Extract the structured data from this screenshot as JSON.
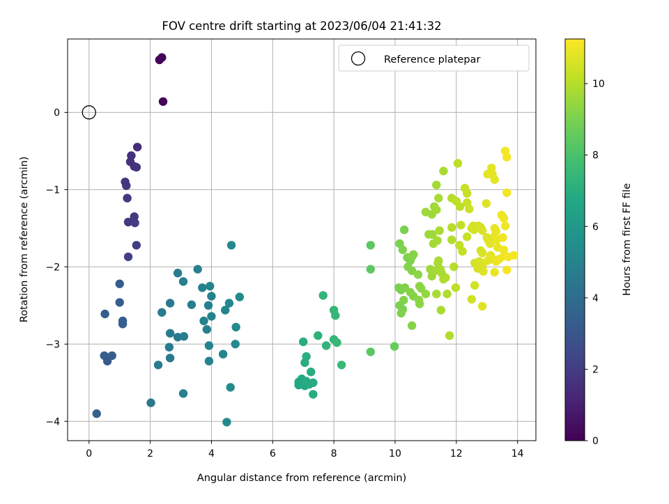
{
  "chart_data": {
    "type": "scatter",
    "title": "FOV centre drift starting at 2023/06/04 21:41:32",
    "xlabel": "Angular distance from reference (arcmin)",
    "ylabel": "Rotation from reference (arcmin)",
    "xlim": [
      -0.7,
      14.6
    ],
    "ylim": [
      -4.25,
      0.95
    ],
    "xticks": [
      0,
      2,
      4,
      6,
      8,
      10,
      12,
      14
    ],
    "yticks": [
      -4,
      -3,
      -2,
      -1,
      0
    ],
    "grid": true,
    "legend": {
      "placement": "top-right",
      "entries": [
        "Reference platepar"
      ]
    },
    "reference_point": {
      "x": 0,
      "y": 0
    },
    "colorbar": {
      "label": "Hours from first FF file",
      "range": [
        0,
        11.25
      ],
      "ticks": [
        0,
        2,
        4,
        6,
        8,
        10
      ],
      "colormap": "viridis"
    },
    "points": [
      [
        2.3,
        0.68,
        0.1
      ],
      [
        2.38,
        0.71,
        0.1
      ],
      [
        2.42,
        0.14,
        0.1
      ],
      [
        1.38,
        -0.56,
        1.5
      ],
      [
        1.58,
        -0.45,
        1.4
      ],
      [
        1.35,
        -0.64,
        1.6
      ],
      [
        1.48,
        -0.7,
        1.6
      ],
      [
        1.55,
        -0.71,
        1.6
      ],
      [
        1.18,
        -0.9,
        1.8
      ],
      [
        1.22,
        -0.95,
        1.8
      ],
      [
        1.25,
        -1.11,
        1.9
      ],
      [
        1.48,
        -1.35,
        1.9
      ],
      [
        1.28,
        -1.42,
        1.9
      ],
      [
        1.5,
        -1.43,
        2.0
      ],
      [
        1.55,
        -1.72,
        2.0
      ],
      [
        1.28,
        -1.87,
        2.1
      ],
      [
        1.0,
        -2.22,
        3.2
      ],
      [
        1.0,
        -2.46,
        3.3
      ],
      [
        0.52,
        -2.61,
        3.3
      ],
      [
        1.1,
        -2.7,
        3.3
      ],
      [
        1.1,
        -2.74,
        3.4
      ],
      [
        0.5,
        -3.15,
        3.3
      ],
      [
        0.6,
        -3.22,
        3.2
      ],
      [
        0.75,
        -3.15,
        3.3
      ],
      [
        0.25,
        -3.9,
        3.5
      ],
      [
        2.02,
        -3.76,
        4.5
      ],
      [
        2.26,
        -3.27,
        4.6
      ],
      [
        2.38,
        -2.59,
        4.7
      ],
      [
        2.65,
        -2.47,
        4.6
      ],
      [
        2.65,
        -2.86,
        4.6
      ],
      [
        2.62,
        -3.04,
        4.7
      ],
      [
        2.65,
        -3.18,
        4.6
      ],
      [
        2.9,
        -2.08,
        4.6
      ],
      [
        2.9,
        -2.91,
        4.6
      ],
      [
        3.1,
        -2.9,
        4.7
      ],
      [
        3.08,
        -3.64,
        4.8
      ],
      [
        3.08,
        -2.19,
        4.8
      ],
      [
        3.35,
        -2.49,
        4.8
      ],
      [
        3.55,
        -2.03,
        4.9
      ],
      [
        3.7,
        -2.27,
        4.9
      ],
      [
        3.75,
        -2.7,
        4.9
      ],
      [
        3.85,
        -2.81,
        4.9
      ],
      [
        3.9,
        -2.5,
        4.9
      ],
      [
        3.95,
        -2.25,
        5.0
      ],
      [
        4.0,
        -2.38,
        5.0
      ],
      [
        4.0,
        -2.64,
        5.0
      ],
      [
        3.92,
        -3.02,
        5.0
      ],
      [
        3.92,
        -3.22,
        5.0
      ],
      [
        4.38,
        -3.13,
        5.1
      ],
      [
        4.45,
        -2.56,
        5.1
      ],
      [
        4.58,
        -2.47,
        5.1
      ],
      [
        4.65,
        -1.72,
        5.2
      ],
      [
        4.8,
        -2.78,
        5.2
      ],
      [
        4.78,
        -3.0,
        5.2
      ],
      [
        4.92,
        -2.39,
        5.3
      ],
      [
        4.62,
        -3.56,
        5.3
      ],
      [
        4.5,
        -4.01,
        5.3
      ],
      [
        6.85,
        -3.49,
        6.7
      ],
      [
        6.85,
        -3.53,
        6.7
      ],
      [
        6.95,
        -3.45,
        6.8
      ],
      [
        7.0,
        -3.51,
        6.8
      ],
      [
        7.05,
        -3.54,
        6.8
      ],
      [
        7.1,
        -3.48,
        6.9
      ],
      [
        7.2,
        -3.52,
        6.9
      ],
      [
        7.32,
        -3.5,
        6.9
      ],
      [
        7.25,
        -3.36,
        6.9
      ],
      [
        7.05,
        -3.24,
        7.0
      ],
      [
        7.1,
        -3.16,
        7.0
      ],
      [
        7.0,
        -2.97,
        7.0
      ],
      [
        7.32,
        -3.65,
        6.9
      ],
      [
        7.48,
        -2.89,
        7.2
      ],
      [
        7.65,
        -2.37,
        7.3
      ],
      [
        7.75,
        -3.02,
        7.3
      ],
      [
        8.0,
        -2.56,
        7.4
      ],
      [
        8.05,
        -2.63,
        7.4
      ],
      [
        8.0,
        -2.94,
        7.4
      ],
      [
        8.1,
        -2.98,
        7.5
      ],
      [
        8.25,
        -3.27,
        7.5
      ],
      [
        9.2,
        -1.72,
        8.4
      ],
      [
        9.2,
        -2.03,
        8.4
      ],
      [
        9.2,
        -3.1,
        8.4
      ],
      [
        9.98,
        -3.03,
        8.6
      ],
      [
        10.15,
        -1.7,
        9.0
      ],
      [
        10.3,
        -1.52,
        9.0
      ],
      [
        10.25,
        -1.78,
        9.1
      ],
      [
        10.4,
        -1.88,
        9.1
      ],
      [
        10.5,
        -1.92,
        9.1
      ],
      [
        10.55,
        -1.87,
        9.2
      ],
      [
        10.6,
        -1.84,
        9.2
      ],
      [
        10.42,
        -2.0,
        9.2
      ],
      [
        10.55,
        -2.05,
        9.2
      ],
      [
        10.12,
        -2.27,
        9.0
      ],
      [
        10.2,
        -2.3,
        9.0
      ],
      [
        10.32,
        -2.27,
        9.1
      ],
      [
        10.28,
        -2.43,
        9.1
      ],
      [
        10.15,
        -2.5,
        9.0
      ],
      [
        10.25,
        -2.55,
        9.0
      ],
      [
        10.2,
        -2.6,
        9.1
      ],
      [
        10.5,
        -2.33,
        9.2
      ],
      [
        10.6,
        -2.38,
        9.2
      ],
      [
        10.78,
        -2.43,
        9.3
      ],
      [
        10.8,
        -2.48,
        9.3
      ],
      [
        10.75,
        -2.1,
        9.3
      ],
      [
        10.8,
        -2.25,
        9.3
      ],
      [
        10.85,
        -2.28,
        9.3
      ],
      [
        10.55,
        -2.76,
        9.2
      ],
      [
        11.0,
        -2.35,
        9.4
      ],
      [
        11.0,
        -1.29,
        9.6
      ],
      [
        11.1,
        -1.58,
        9.6
      ],
      [
        11.22,
        -1.58,
        9.6
      ],
      [
        11.28,
        -1.22,
        9.6
      ],
      [
        11.2,
        -1.32,
        9.6
      ],
      [
        11.25,
        -1.7,
        9.7
      ],
      [
        11.35,
        -1.26,
        9.7
      ],
      [
        11.35,
        -0.94,
        9.7
      ],
      [
        11.38,
        -1.66,
        9.7
      ],
      [
        11.45,
        -1.53,
        9.8
      ],
      [
        11.42,
        -1.11,
        9.8
      ],
      [
        11.58,
        -0.76,
        9.8
      ],
      [
        11.15,
        -2.03,
        9.6
      ],
      [
        11.2,
        -2.12,
        9.6
      ],
      [
        11.3,
        -2.05,
        9.7
      ],
      [
        11.4,
        -1.95,
        9.7
      ],
      [
        11.42,
        -1.92,
        9.8
      ],
      [
        11.48,
        -2.03,
        9.8
      ],
      [
        11.52,
        -2.08,
        9.8
      ],
      [
        11.58,
        -2.16,
        9.9
      ],
      [
        11.65,
        -2.14,
        9.9
      ],
      [
        11.7,
        -2.35,
        9.9
      ],
      [
        11.35,
        -2.35,
        9.8
      ],
      [
        11.5,
        -2.56,
        9.8
      ],
      [
        11.78,
        -2.89,
        9.9
      ],
      [
        11.85,
        -1.11,
        10.0
      ],
      [
        11.85,
        -1.49,
        10.0
      ],
      [
        11.85,
        -1.65,
        10.0
      ],
      [
        11.92,
        -2.0,
        10.0
      ],
      [
        11.98,
        -2.27,
        10.1
      ],
      [
        12.05,
        -0.66,
        10.1
      ],
      [
        12.0,
        -1.15,
        10.1
      ],
      [
        12.12,
        -1.22,
        10.1
      ],
      [
        12.15,
        -1.46,
        10.2
      ],
      [
        12.1,
        -1.72,
        10.2
      ],
      [
        12.2,
        -1.8,
        10.2
      ],
      [
        12.28,
        -0.98,
        10.3
      ],
      [
        12.35,
        -1.05,
        10.3
      ],
      [
        12.35,
        -1.17,
        10.3
      ],
      [
        12.35,
        -1.61,
        10.3
      ],
      [
        12.42,
        -1.25,
        10.4
      ],
      [
        12.5,
        -1.5,
        10.5
      ],
      [
        12.55,
        -1.47,
        10.5
      ],
      [
        12.58,
        -1.52,
        10.5
      ],
      [
        12.6,
        -1.95,
        10.5
      ],
      [
        12.6,
        -2.24,
        10.5
      ],
      [
        12.5,
        -2.42,
        10.5
      ],
      [
        12.72,
        -1.47,
        10.6
      ],
      [
        12.8,
        -1.49,
        10.6
      ],
      [
        12.85,
        -1.53,
        10.6
      ],
      [
        12.8,
        -1.79,
        10.6
      ],
      [
        12.85,
        -1.82,
        10.6
      ],
      [
        12.85,
        -2.0,
        10.6
      ],
      [
        12.88,
        -2.06,
        10.7
      ],
      [
        12.7,
        -2.02,
        10.6
      ],
      [
        12.75,
        -1.93,
        10.6
      ],
      [
        12.85,
        -2.51,
        10.7
      ],
      [
        12.98,
        -1.18,
        10.7
      ],
      [
        13.02,
        -0.8,
        10.8
      ],
      [
        13.15,
        -0.72,
        10.8
      ],
      [
        13.18,
        -0.8,
        10.8
      ],
      [
        13.25,
        -0.87,
        10.8
      ],
      [
        13.0,
        -1.62,
        10.7
      ],
      [
        13.05,
        -1.66,
        10.7
      ],
      [
        13.1,
        -1.7,
        10.8
      ],
      [
        13.12,
        -1.85,
        10.8
      ],
      [
        13.2,
        -1.9,
        10.8
      ],
      [
        13.25,
        -1.6,
        10.9
      ],
      [
        13.25,
        -1.5,
        10.9
      ],
      [
        13.3,
        -1.54,
        10.9
      ],
      [
        13.32,
        -1.65,
        10.9
      ],
      [
        13.35,
        -1.75,
        10.9
      ],
      [
        13.3,
        -1.93,
        10.9
      ],
      [
        13.25,
        -2.07,
        10.9
      ],
      [
        13.4,
        -1.9,
        11.0
      ],
      [
        13.48,
        -1.33,
        11.0
      ],
      [
        13.55,
        -1.37,
        11.0
      ],
      [
        13.52,
        -1.62,
        11.0
      ],
      [
        13.6,
        -1.47,
        11.0
      ],
      [
        13.55,
        -1.78,
        11.0
      ],
      [
        13.55,
        -1.86,
        11.0
      ],
      [
        13.6,
        -0.5,
        11.1
      ],
      [
        13.65,
        -0.58,
        11.1
      ],
      [
        13.65,
        -1.04,
        11.1
      ],
      [
        13.65,
        -2.04,
        11.1
      ],
      [
        13.7,
        -1.87,
        11.1
      ],
      [
        13.88,
        -1.85,
        11.1
      ],
      [
        13.02,
        -1.92,
        10.8
      ]
    ]
  }
}
